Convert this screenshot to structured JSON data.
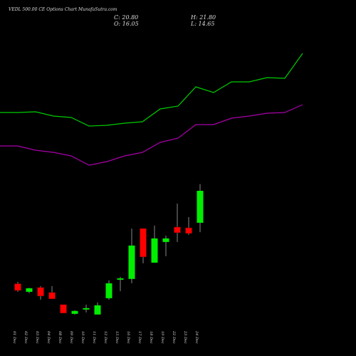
{
  "chart_data": [
    {
      "type": "candlestick",
      "title": "VEDL 500.00 CE Options Chart MunafaSutra.com",
      "annotations": [
        "C: 20.80",
        "O: 16.05",
        "H: 21.80",
        "L: 14.65"
      ],
      "categories": [
        "01 Dec",
        "02 Dec",
        "03 Dec",
        "04 Dec",
        "08 Dec",
        "09 Dec",
        "10 Dec",
        "11 Dec",
        "12 Dec",
        "15 Dec",
        "16 Dec",
        "17 Dec",
        "18 Dec",
        "19 Dec",
        "22 Dec",
        "23 Dec",
        "24 Dec"
      ],
      "open": [
        7.0,
        5.8,
        6.44,
        5.7,
        3.9,
        2.53,
        3.17,
        2.43,
        4.85,
        7.6,
        7.71,
        15.2,
        10.13,
        13.2,
        15.41,
        15.3,
        16.05
      ],
      "high": [
        7.28,
        6.4,
        6.65,
        6.65,
        3.9,
        3.06,
        3.9,
        4.22,
        7.5,
        8.02,
        15.2,
        15.2,
        15.63,
        14.15,
        18.9,
        16.9,
        21.8
      ],
      "low": [
        5.8,
        5.6,
        4.64,
        4.75,
        2.64,
        2.43,
        2.74,
        2.43,
        4.64,
        5.91,
        7.07,
        10.03,
        10.13,
        11.1,
        13.2,
        14.25,
        14.65
      ],
      "close": [
        6.0,
        6.33,
        5.17,
        4.75,
        2.64,
        2.96,
        3.38,
        3.8,
        7.07,
        7.8,
        12.67,
        10.98,
        13.73,
        13.73,
        14.57,
        14.47,
        20.8
      ],
      "up_color": "#00ee00",
      "down_color": "#ff0000",
      "ylim": [
        0.5,
        22.7
      ]
    },
    {
      "type": "line",
      "x": [
        0,
        1,
        2,
        3,
        4,
        5,
        6,
        7,
        8,
        9,
        10,
        11,
        12,
        13,
        14,
        15,
        16,
        17
      ],
      "xlim": [
        0,
        17
      ],
      "ylim": [
        0,
        250
      ],
      "series": [
        {
          "color": "#00cc00",
          "values": [
            92,
            92,
            93,
            87,
            85,
            73,
            74,
            77,
            79,
            97,
            101,
            128,
            120,
            135,
            135,
            141,
            140,
            175
          ]
        },
        {
          "color": "#aa00aa",
          "values": [
            45,
            45,
            39,
            36,
            31,
            18,
            23,
            31,
            36,
            50,
            56,
            75,
            75,
            84,
            87,
            91,
            92,
            103
          ]
        }
      ]
    }
  ]
}
